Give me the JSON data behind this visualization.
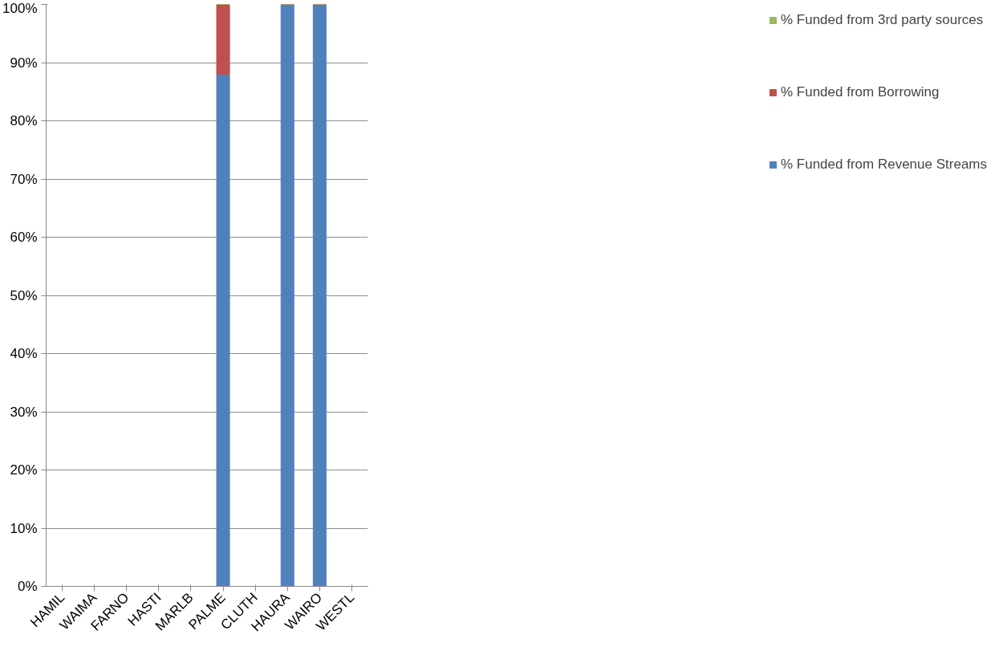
{
  "chart_data": {
    "type": "bar",
    "stacked": true,
    "categories": [
      "HAMIL",
      "WAIMA",
      "FARNO",
      "HASTI",
      "MARLB",
      "PALME",
      "CLUTH",
      "HAURA",
      "WAIRO",
      "WESTL"
    ],
    "series": [
      {
        "name": "% Funded from Revenue Streams",
        "color": "#4f81bd",
        "values": [
          0,
          0,
          0,
          0,
          0,
          88,
          0,
          100,
          100,
          0
        ]
      },
      {
        "name": "% Funded from Borrowing",
        "color": "#c0504d",
        "values": [
          0,
          0,
          0,
          0,
          0,
          12,
          0,
          0,
          0,
          0
        ]
      },
      {
        "name": "% Funded from 3rd party sources",
        "color": "#9bbb59",
        "values": [
          0,
          0,
          0,
          0,
          0,
          0,
          0,
          0,
          0,
          0
        ]
      }
    ],
    "ylim": [
      0,
      100
    ],
    "yticks": [
      {
        "value": 0,
        "label": "0%"
      },
      {
        "value": 10,
        "label": "10%"
      },
      {
        "value": 20,
        "label": "20%"
      },
      {
        "value": 30,
        "label": "30%"
      },
      {
        "value": 40,
        "label": "40%"
      },
      {
        "value": 50,
        "label": "50%"
      },
      {
        "value": 60,
        "label": "60%"
      },
      {
        "value": 70,
        "label": "70%"
      },
      {
        "value": 80,
        "label": "80%"
      },
      {
        "value": 90,
        "label": "90%"
      },
      {
        "value": 100,
        "label": "100%"
      }
    ],
    "grid": "y",
    "legend": "right"
  }
}
